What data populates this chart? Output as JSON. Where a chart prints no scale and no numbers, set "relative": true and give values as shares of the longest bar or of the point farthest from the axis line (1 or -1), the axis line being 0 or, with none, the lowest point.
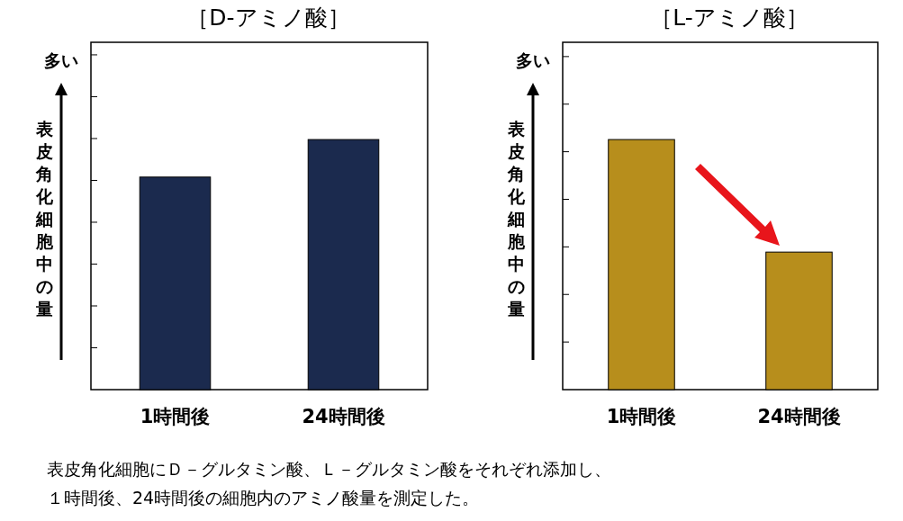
{
  "chart_data": [
    {
      "type": "bar",
      "title": "［D-アミノ酸］",
      "ylabel": "表皮角化細胞中の量",
      "relative": true,
      "categories": [
        "1時間後",
        "24時間後"
      ],
      "series": [
        {
          "color": "#1b2a4e",
          "values": [
            0.85,
            1
          ]
        }
      ],
      "annotations": [
        "多い",
        "表皮角化細胞にＤ－グルタミン酸、Ｌ－グルタミン酸をそれぞれ添加し、",
        "１時間後、24時間後の細胞内のアミノ酸量を測定した。"
      ]
    },
    {
      "type": "bar",
      "title": "［L-アミノ酸］",
      "ylabel": "表皮角化細胞中の量",
      "relative": true,
      "categories": [
        "1時間後",
        "24時間後"
      ],
      "series": [
        {
          "color": "#b78e1c",
          "values": [
            1,
            0.55
          ]
        }
      ],
      "annotations": [
        "多い"
      ]
    }
  ]
}
